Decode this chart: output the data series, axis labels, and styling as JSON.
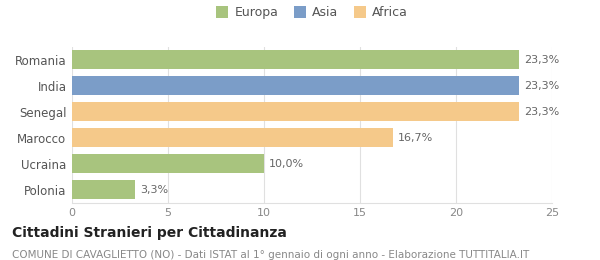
{
  "categories": [
    "Romania",
    "India",
    "Senegal",
    "Marocco",
    "Ucraina",
    "Polonia"
  ],
  "values": [
    23.3,
    23.3,
    23.3,
    16.7,
    10.0,
    3.3
  ],
  "bar_colors": [
    "#a8c47e",
    "#7b9dc8",
    "#f5c98a",
    "#f5c98a",
    "#a8c47e",
    "#a8c47e"
  ],
  "labels": [
    "23,3%",
    "23,3%",
    "23,3%",
    "16,7%",
    "10,0%",
    "3,3%"
  ],
  "legend": [
    {
      "label": "Europa",
      "color": "#a8c47e"
    },
    {
      "label": "Asia",
      "color": "#7b9dc8"
    },
    {
      "label": "Africa",
      "color": "#f5c98a"
    }
  ],
  "xlim": [
    0,
    25
  ],
  "xticks": [
    0,
    5,
    10,
    15,
    20,
    25
  ],
  "title": "Cittadini Stranieri per Cittadinanza",
  "subtitle": "COMUNE DI CAVAGLIETTO (NO) - Dati ISTAT al 1° gennaio di ogni anno - Elaborazione TUTTITALIA.IT",
  "background_color": "#ffffff",
  "grid_color": "#e0e0e0",
  "title_fontsize": 10,
  "subtitle_fontsize": 7.5,
  "label_fontsize": 8,
  "ytick_fontsize": 8.5,
  "xtick_fontsize": 8
}
